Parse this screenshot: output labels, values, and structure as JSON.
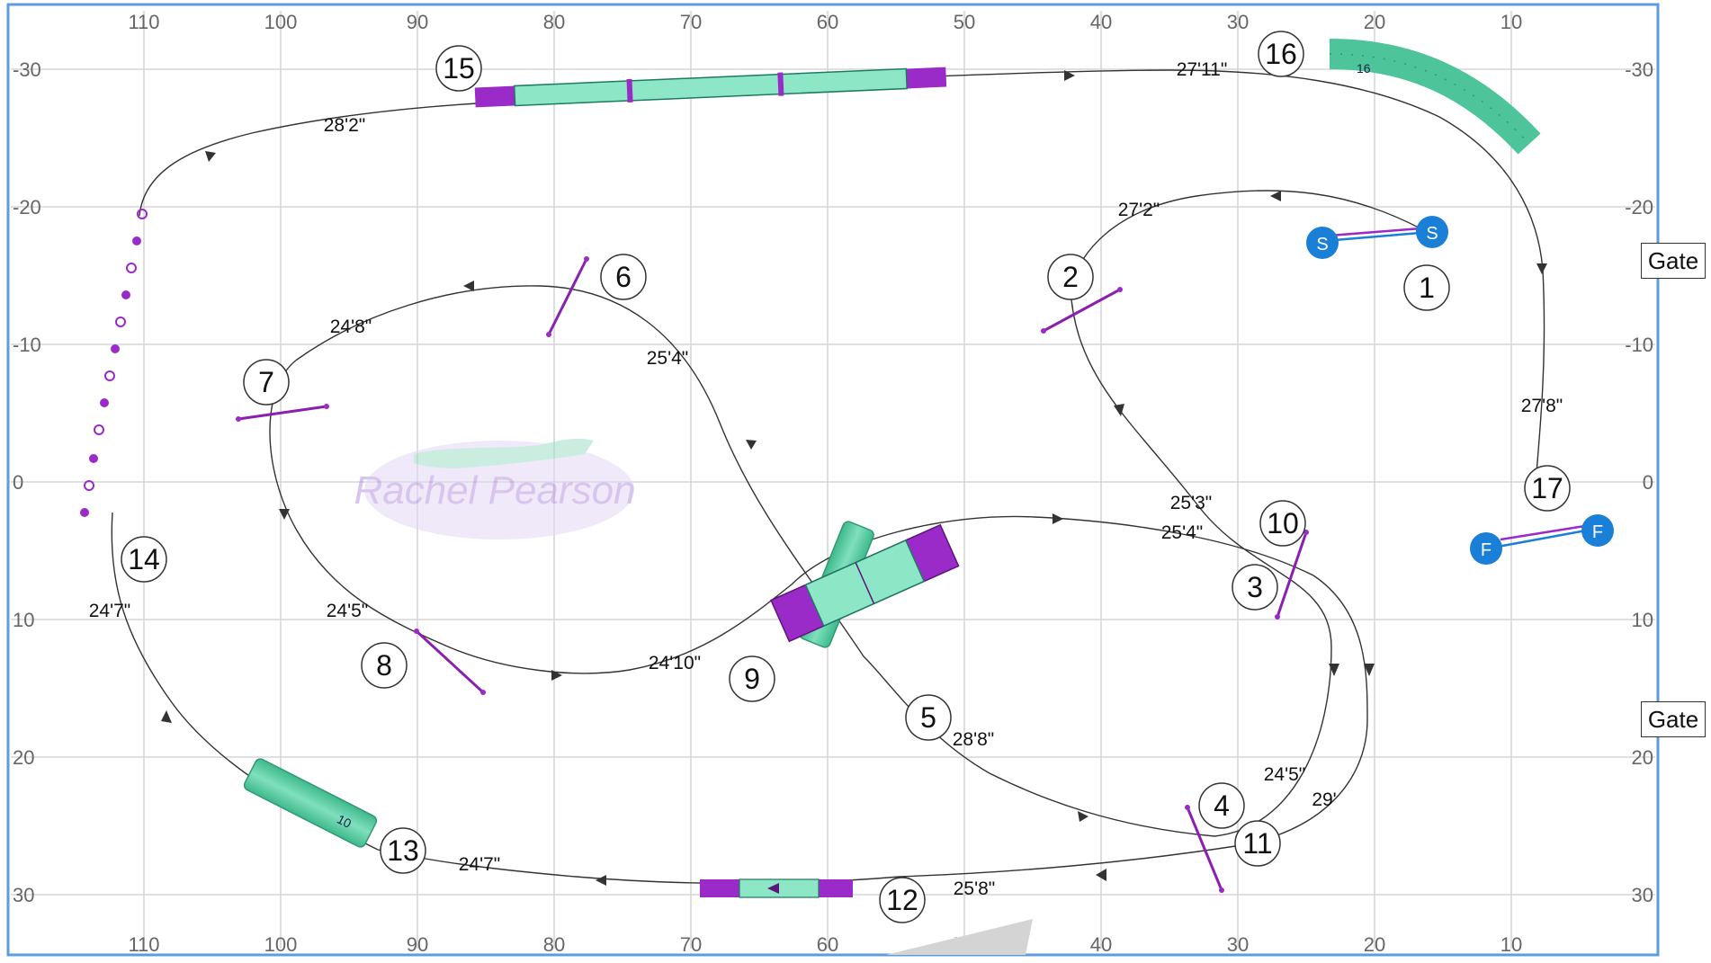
{
  "axes": {
    "x_ticks": [
      "110",
      "100",
      "90",
      "80",
      "70",
      "60",
      "50",
      "40",
      "30",
      "20",
      "10"
    ],
    "y_ticks": [
      "-30",
      "-20",
      "-10",
      "0",
      "10",
      "20",
      "30"
    ]
  },
  "gates": [
    "Gate",
    "Gate"
  ],
  "start_finish": {
    "start": "S",
    "finish": "F"
  },
  "obstacle_numbers": [
    "1",
    "2",
    "3",
    "4",
    "5",
    "6",
    "7",
    "8",
    "9",
    "10",
    "11",
    "12",
    "13",
    "14",
    "15",
    "16",
    "17"
  ],
  "tunnel_labels": [
    "16",
    "10",
    "10"
  ],
  "distances": [
    "27'11\"",
    "28'2\"",
    "27'2\"",
    "24'8\"",
    "25'4\"",
    "27'8\"",
    "25'3\"",
    "25'4\"",
    "24'7\"",
    "24'5\"",
    "24'10\"",
    "28'8\"",
    "24'5\"",
    "29'",
    "24'7\"",
    "25'8\""
  ],
  "watermark": "Rachel Pearson",
  "colors": {
    "tunnel": "#4dc49a",
    "jump_bar": "#9b2bc8",
    "start_finish_marker": "#1a7fd6",
    "frame": "#5b9de0",
    "grid": "#d6d6d6"
  }
}
